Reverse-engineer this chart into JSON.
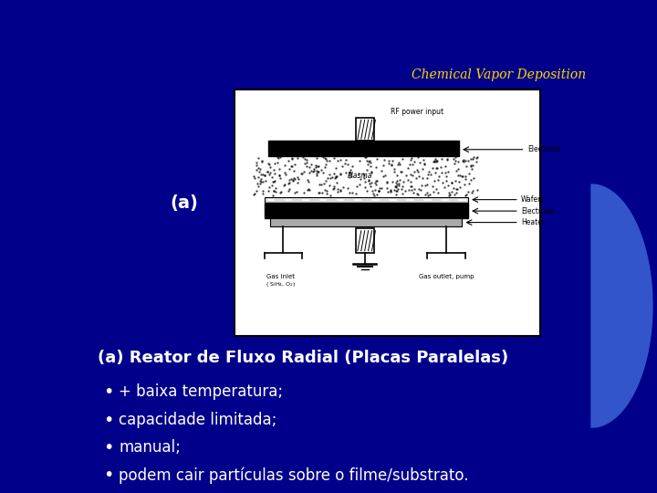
{
  "bg_color": "#00008B",
  "title": "Chemical Vapor Deposition",
  "title_color": "#FFD700",
  "title_fontsize": 10,
  "label_a": "(a)",
  "label_a_color": "#FFFFFF",
  "label_a_fontsize": 14,
  "heading": "(a) Reator de Fluxo Radial (Placas Paralelas)",
  "heading_color": "#FFFFFF",
  "heading_fontsize": 13,
  "bullets": [
    "+ baixa temperatura;",
    "capacidade limitada;",
    "manual;",
    "podem cair partículas sobre o filme/substrato."
  ],
  "bullet_color": "#FFFFFF",
  "bullet_fontsize": 12,
  "diagram_bg": "#FFFFFF",
  "blue_accent_color": "#3355CC"
}
